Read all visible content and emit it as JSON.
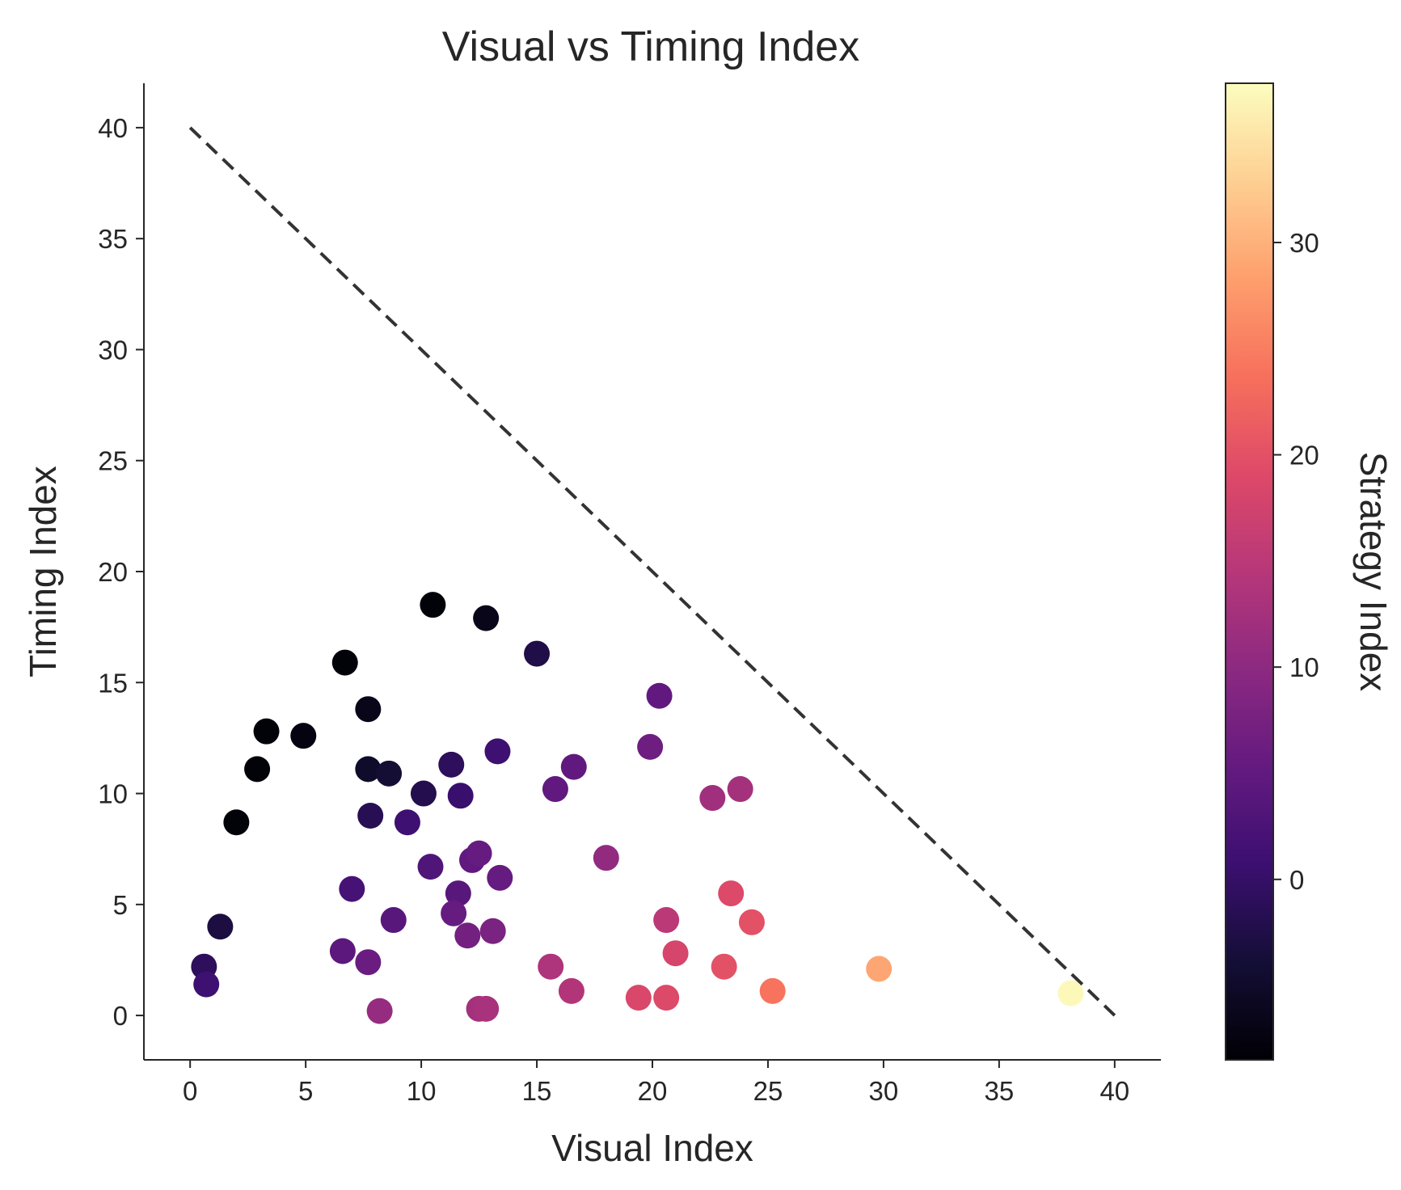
{
  "chart_data": {
    "type": "scatter",
    "title": "Visual vs Timing Index",
    "xlabel": "Visual Index",
    "ylabel": "Timing Index",
    "colorbar_label": "Strategy Index",
    "xlim": [
      -2,
      42
    ],
    "ylim": [
      -2,
      42
    ],
    "x_ticks": [
      "0",
      "5",
      "10",
      "15",
      "20",
      "25",
      "30",
      "35",
      "40"
    ],
    "y_ticks": [
      "0",
      "5",
      "10",
      "15",
      "20",
      "25",
      "30",
      "35",
      "40"
    ],
    "colorbar_ticks": [
      "0",
      "10",
      "20",
      "30"
    ],
    "color_range": [
      -8.5,
      37.5
    ],
    "colormap": "magma",
    "grid": false,
    "reference_line": {
      "style": "dashed",
      "color": "#333333",
      "from": [
        0,
        40
      ],
      "to": [
        40,
        0
      ]
    },
    "points": [
      {
        "x": 10.5,
        "y": 18.5,
        "c": -8.0
      },
      {
        "x": 12.8,
        "y": 17.9,
        "c": -6.5
      },
      {
        "x": 6.7,
        "y": 15.9,
        "c": -8.0
      },
      {
        "x": 15.0,
        "y": 16.3,
        "c": -2.5
      },
      {
        "x": 7.7,
        "y": 13.8,
        "c": -6.5
      },
      {
        "x": 3.3,
        "y": 12.8,
        "c": -8.0
      },
      {
        "x": 4.9,
        "y": 12.6,
        "c": -7.5
      },
      {
        "x": 2.9,
        "y": 11.1,
        "c": -8.0
      },
      {
        "x": 7.7,
        "y": 11.1,
        "c": -5.0
      },
      {
        "x": 8.6,
        "y": 10.9,
        "c": -4.0
      },
      {
        "x": 2.0,
        "y": 8.7,
        "c": -8.0
      },
      {
        "x": 10.1,
        "y": 10.0,
        "c": -2.0
      },
      {
        "x": 11.3,
        "y": 11.3,
        "c": -1.0
      },
      {
        "x": 11.7,
        "y": 9.9,
        "c": 0.5
      },
      {
        "x": 13.3,
        "y": 11.9,
        "c": 1.0
      },
      {
        "x": 7.8,
        "y": 9.0,
        "c": -1.5
      },
      {
        "x": 9.4,
        "y": 8.7,
        "c": 1.0
      },
      {
        "x": 15.8,
        "y": 10.2,
        "c": 5.0
      },
      {
        "x": 16.6,
        "y": 11.2,
        "c": 5.0
      },
      {
        "x": 19.9,
        "y": 12.1,
        "c": 6.5
      },
      {
        "x": 20.3,
        "y": 14.4,
        "c": 5.0
      },
      {
        "x": 22.6,
        "y": 9.8,
        "c": 12.0
      },
      {
        "x": 23.8,
        "y": 10.2,
        "c": 12.5
      },
      {
        "x": 18.0,
        "y": 7.1,
        "c": 10.5
      },
      {
        "x": 10.4,
        "y": 6.7,
        "c": 3.0
      },
      {
        "x": 12.2,
        "y": 7.0,
        "c": 5.0
      },
      {
        "x": 12.5,
        "y": 7.3,
        "c": 5.5
      },
      {
        "x": 13.4,
        "y": 6.2,
        "c": 5.5
      },
      {
        "x": 7.0,
        "y": 5.7,
        "c": 2.0
      },
      {
        "x": 11.6,
        "y": 5.5,
        "c": 4.0
      },
      {
        "x": 11.4,
        "y": 4.6,
        "c": 5.5
      },
      {
        "x": 8.8,
        "y": 4.3,
        "c": 4.0
      },
      {
        "x": 12.0,
        "y": 3.6,
        "c": 7.0
      },
      {
        "x": 13.1,
        "y": 3.8,
        "c": 8.0
      },
      {
        "x": 1.3,
        "y": 4.0,
        "c": -3.0
      },
      {
        "x": 6.6,
        "y": 2.9,
        "c": 4.5
      },
      {
        "x": 7.7,
        "y": 2.4,
        "c": 6.0
      },
      {
        "x": 0.6,
        "y": 2.2,
        "c": -1.0
      },
      {
        "x": 0.7,
        "y": 1.4,
        "c": 1.0
      },
      {
        "x": 8.2,
        "y": 0.2,
        "c": 11.0
      },
      {
        "x": 12.5,
        "y": 0.3,
        "c": 12.5
      },
      {
        "x": 12.8,
        "y": 0.3,
        "c": 13.0
      },
      {
        "x": 15.6,
        "y": 2.2,
        "c": 13.5
      },
      {
        "x": 16.5,
        "y": 1.1,
        "c": 14.0
      },
      {
        "x": 19.4,
        "y": 0.8,
        "c": 18.5
      },
      {
        "x": 20.6,
        "y": 0.8,
        "c": 19.0
      },
      {
        "x": 20.6,
        "y": 4.3,
        "c": 15.0
      },
      {
        "x": 21.0,
        "y": 2.8,
        "c": 18.0
      },
      {
        "x": 23.1,
        "y": 2.2,
        "c": 20.0
      },
      {
        "x": 23.4,
        "y": 5.5,
        "c": 19.0
      },
      {
        "x": 24.3,
        "y": 4.2,
        "c": 20.0
      },
      {
        "x": 25.2,
        "y": 1.1,
        "c": 24.0
      },
      {
        "x": 29.8,
        "y": 2.1,
        "c": 29.0
      },
      {
        "x": 38.1,
        "y": 1.0,
        "c": 37.0
      }
    ]
  }
}
